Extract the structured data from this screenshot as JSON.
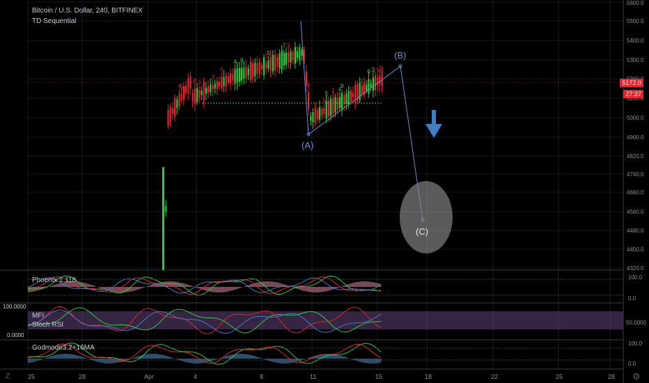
{
  "header": {
    "symbol": "Bitcoin / U.S. Dollar, 240, BITFINEX",
    "indicator": "TD Sequential"
  },
  "price_badges": {
    "last": "5172.0",
    "countdown": "27:27"
  },
  "panes": {
    "phoenix": {
      "label": "Phoenix 1.118",
      "ticks": [
        "100.0",
        "0.0"
      ]
    },
    "mfi": {
      "label_mfi": "MFI",
      "label_stoch": "Stoch RSI",
      "ticks_right": [
        "50.0000"
      ],
      "left_top": "100.0000",
      "left_bottom": "0.0000"
    },
    "godmode": {
      "label": "Godmode3.2+16MA",
      "ticks": [
        "100.0",
        "0.0"
      ]
    }
  },
  "annotations": {
    "a": "(A)",
    "b": "(B)",
    "c": "(C)"
  },
  "icons": {
    "corner_left": "Z",
    "corner_right": "gear-icon"
  },
  "colors": {
    "bull": "#2ecc40",
    "bear": "#e3262e",
    "wave": "#6b8fd6",
    "arrow": "#3f7fc6",
    "td_green": "#58c15a",
    "td_red": "#e3262e"
  },
  "chart_data": {
    "type": "candlestick",
    "title": "Bitcoin / U.S. Dollar, 240, BITFINEX",
    "y_ticks": [
      5600,
      5500,
      5400,
      5300,
      5200,
      5100,
      5000,
      4900,
      4820,
      4740,
      4660,
      4560,
      4480,
      4400,
      4320
    ],
    "x_tick_labels": [
      "25",
      "28",
      "Apr",
      "4",
      "8",
      "11",
      "15",
      "18",
      "22",
      "25",
      "28"
    ],
    "ylim": [
      4320,
      5600
    ],
    "wave_points": [
      {
        "label": "(A)",
        "price": 4920
      },
      {
        "label": "(B)",
        "price": 5270
      },
      {
        "label": "(C)",
        "price": 4540
      }
    ],
    "last_price": 5172.0
  }
}
